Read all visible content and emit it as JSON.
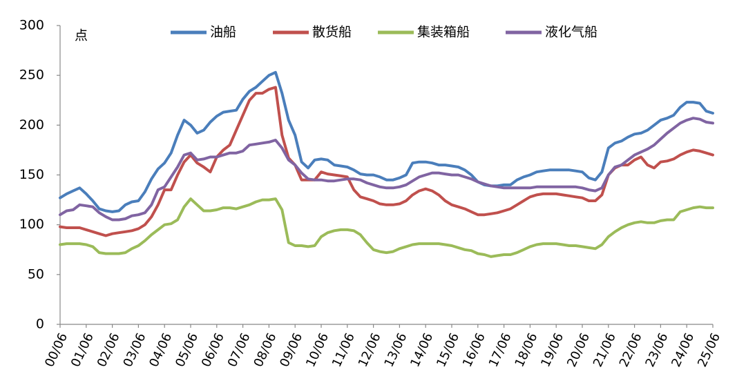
{
  "chart_data": {
    "type": "line",
    "y_label": "点",
    "legend": "top",
    "categories": [
      "00/06",
      null,
      null,
      null,
      "01/06",
      null,
      null,
      null,
      "02/06",
      null,
      null,
      null,
      "03/06",
      null,
      null,
      null,
      "04/06",
      null,
      null,
      null,
      "05/06",
      null,
      null,
      null,
      "06/06",
      null,
      null,
      null,
      "07/06",
      null,
      null,
      null,
      "08/06",
      null,
      null,
      null,
      "09/06",
      null,
      null,
      null,
      "10/06",
      null,
      null,
      null,
      "11/06",
      null,
      null,
      null,
      "12/06",
      null,
      null,
      null,
      "13/06",
      null,
      null,
      null,
      "14/06",
      null,
      null,
      null,
      "15/06",
      null,
      null,
      null,
      "16/06",
      null,
      null,
      null,
      "17/06",
      null,
      null,
      null,
      "18/06",
      null,
      null,
      null,
      "19/06",
      null,
      null,
      null,
      "20/06",
      null,
      null,
      null,
      "21/06",
      null,
      null,
      null,
      "22/06",
      null,
      null,
      null,
      "23/06",
      null,
      null,
      null,
      "24/06",
      null,
      null,
      null,
      "25/06"
    ],
    "ylim": [
      0,
      300
    ],
    "yticks": [
      0,
      50,
      100,
      150,
      200,
      250,
      300
    ],
    "series": [
      {
        "name": "油船",
        "color": "#4a7ebb",
        "values": [
          127,
          131,
          134,
          137,
          131,
          124,
          116,
          114,
          113,
          114,
          120,
          123,
          124,
          133,
          146,
          156,
          162,
          172,
          190,
          205,
          200,
          192,
          195,
          203,
          209,
          213,
          214,
          215,
          226,
          234,
          238,
          244,
          250,
          253,
          232,
          205,
          190,
          163,
          157,
          165,
          166,
          165,
          160,
          159,
          158,
          155,
          151,
          150,
          150,
          148,
          145,
          145,
          147,
          150,
          162,
          163,
          163,
          162,
          160,
          160,
          159,
          158,
          155,
          150,
          143,
          140,
          139,
          139,
          140,
          140,
          145,
          148,
          150,
          153,
          154,
          155,
          155,
          155,
          155,
          154,
          153,
          147,
          145,
          153,
          177,
          182,
          184,
          188,
          191,
          192,
          195,
          200,
          205,
          207,
          210,
          218,
          223,
          223,
          222,
          214,
          212
        ]
      },
      {
        "name": "散货船",
        "color": "#c0504d",
        "values": [
          98,
          97,
          97,
          97,
          95,
          93,
          91,
          89,
          91,
          92,
          93,
          94,
          96,
          100,
          108,
          120,
          135,
          135,
          150,
          163,
          170,
          162,
          158,
          153,
          168,
          175,
          180,
          195,
          210,
          225,
          232,
          232,
          236,
          238,
          190,
          167,
          160,
          145,
          145,
          145,
          153,
          151,
          150,
          149,
          148,
          135,
          128,
          126,
          124,
          121,
          120,
          120,
          121,
          124,
          130,
          134,
          136,
          134,
          130,
          124,
          120,
          118,
          116,
          113,
          110,
          110,
          111,
          112,
          114,
          116,
          120,
          124,
          128,
          130,
          131,
          131,
          131,
          130,
          129,
          128,
          127,
          124,
          124,
          130,
          150,
          157,
          160,
          160,
          165,
          168,
          160,
          157,
          163,
          164,
          166,
          170,
          173,
          175,
          174,
          172,
          170
        ]
      },
      {
        "name": "集装箱船",
        "color": "#9bbb59",
        "values": [
          80,
          81,
          81,
          81,
          80,
          78,
          72,
          71,
          71,
          71,
          72,
          76,
          79,
          84,
          90,
          95,
          100,
          101,
          105,
          118,
          126,
          120,
          114,
          114,
          115,
          117,
          117,
          116,
          118,
          120,
          123,
          125,
          125,
          126,
          115,
          82,
          79,
          79,
          78,
          79,
          88,
          92,
          94,
          95,
          95,
          94,
          90,
          82,
          75,
          73,
          72,
          73,
          76,
          78,
          80,
          81,
          81,
          81,
          81,
          80,
          79,
          77,
          75,
          74,
          71,
          70,
          68,
          69,
          70,
          70,
          72,
          75,
          78,
          80,
          81,
          81,
          81,
          80,
          79,
          79,
          78,
          77,
          76,
          80,
          88,
          93,
          97,
          100,
          102,
          103,
          102,
          102,
          104,
          105,
          105,
          113,
          115,
          117,
          118,
          117,
          117
        ]
      },
      {
        "name": "液化气船",
        "color": "#8064a2",
        "values": [
          110,
          114,
          115,
          120,
          119,
          118,
          112,
          108,
          105,
          105,
          106,
          109,
          110,
          112,
          120,
          135,
          138,
          148,
          158,
          170,
          172,
          165,
          166,
          168,
          168,
          170,
          172,
          172,
          174,
          180,
          181,
          182,
          183,
          185,
          177,
          165,
          160,
          152,
          146,
          145,
          145,
          144,
          144,
          145,
          146,
          146,
          145,
          142,
          140,
          138,
          137,
          137,
          138,
          140,
          144,
          148,
          150,
          152,
          152,
          151,
          150,
          150,
          148,
          146,
          143,
          141,
          139,
          138,
          137,
          137,
          137,
          137,
          137,
          138,
          138,
          138,
          138,
          138,
          138,
          138,
          137,
          135,
          134,
          137,
          150,
          158,
          160,
          165,
          170,
          173,
          176,
          180,
          186,
          192,
          197,
          202,
          205,
          207,
          206,
          203,
          202
        ]
      }
    ]
  }
}
